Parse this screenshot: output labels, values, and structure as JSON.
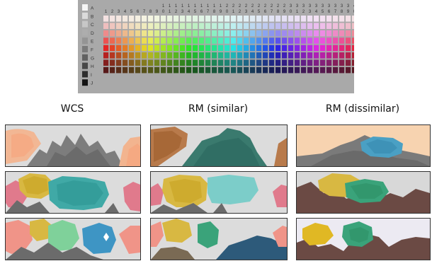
{
  "munsell_chart": {
    "row_labels": [
      "A",
      "B",
      "C",
      "D",
      "E",
      "F",
      "G",
      "H",
      "I",
      "J"
    ],
    "column_numbers": [
      "1",
      "2",
      "3",
      "4",
      "5",
      "6",
      "7",
      "8",
      "9",
      "10",
      "11",
      "12",
      "13",
      "14",
      "15",
      "16",
      "17",
      "18",
      "19",
      "20",
      "21",
      "22",
      "23",
      "24",
      "25",
      "26",
      "27",
      "28",
      "29",
      "30",
      "31",
      "32",
      "33",
      "34",
      "35",
      "36",
      "37",
      "38",
      "39",
      "40"
    ]
  },
  "columns": [
    {
      "title": "WCS"
    },
    {
      "title": "RM (similar)"
    },
    {
      "title": "RM (dissimilar)"
    }
  ],
  "colors": {
    "board_bg": "#a9a9a9",
    "panel_bg_light": "#d9d9d9",
    "terrain_gray": "#7a7a7a",
    "terrain_brown": "#6b4a44"
  }
}
